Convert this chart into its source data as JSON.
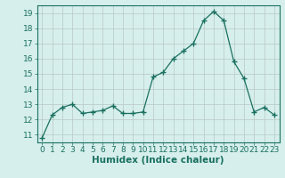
{
  "x": [
    0,
    1,
    2,
    3,
    4,
    5,
    6,
    7,
    8,
    9,
    10,
    11,
    12,
    13,
    14,
    15,
    16,
    17,
    18,
    19,
    20,
    21,
    22,
    23
  ],
  "y": [
    10.8,
    12.3,
    12.8,
    13.0,
    12.4,
    12.5,
    12.6,
    12.9,
    12.4,
    12.4,
    12.5,
    14.8,
    15.1,
    16.0,
    16.5,
    17.0,
    18.5,
    19.1,
    18.5,
    15.8,
    14.7,
    12.5,
    12.8,
    12.3
  ],
  "xlabel": "Humidex (Indice chaleur)",
  "ylim_min": 10.5,
  "ylim_max": 19.5,
  "xlim_min": -0.5,
  "xlim_max": 23.5,
  "yticks": [
    11,
    12,
    13,
    14,
    15,
    16,
    17,
    18,
    19
  ],
  "xticks": [
    0,
    1,
    2,
    3,
    4,
    5,
    6,
    7,
    8,
    9,
    10,
    11,
    12,
    13,
    14,
    15,
    16,
    17,
    18,
    19,
    20,
    21,
    22,
    23
  ],
  "line_color": "#1a7060",
  "bg_color": "#d6efec",
  "grid_color": "#b8c8c4",
  "axis_color": "#1a7060",
  "tick_color": "#1a7060",
  "xlabel_color": "#1a7060",
  "font_size": 6.5,
  "xlabel_font_size": 7.5
}
